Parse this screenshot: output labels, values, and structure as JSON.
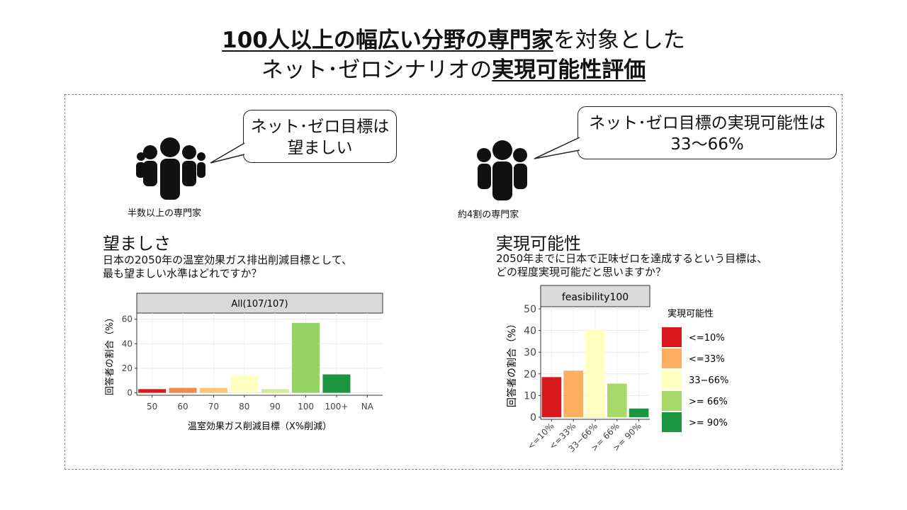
{
  "title": {
    "line1_u": "100人以上の幅広い分野の専門家",
    "line1_rest": "を対象とした",
    "line2_pre": "ネット･ゼロシナリオの",
    "line2_u": "実現可能性評価"
  },
  "left": {
    "bubble_line1": "ネット･ゼロ目標は",
    "bubble_line2": "望ましい",
    "people_caption": "半数以上の専門家",
    "heading": "望ましさ",
    "question_line1": "日本の2050年の温室効果ガス排出削減目標として、",
    "question_line2": "最も望ましい水準はどれですか？"
  },
  "right": {
    "bubble_line1": "ネット･ゼロ目標の実現可能性は",
    "bubble_line2": "33～66%",
    "people_caption": "約4割の専門家",
    "heading": "実現可能性",
    "question_line1": "2050年までに日本で正味ゼロを達成するという目標は、",
    "question_line2": "どの程度実現可能だと思いますか？"
  },
  "icons": {
    "left_group": "people-group-icon",
    "right_group": "people-group-icon"
  },
  "chart_data": [
    {
      "type": "bar",
      "facet_title": "All(107/107)",
      "categories": [
        "50",
        "60",
        "70",
        "80",
        "90",
        "100",
        "100+",
        "NA"
      ],
      "values": [
        3,
        4,
        4,
        14,
        3,
        57,
        15,
        0
      ],
      "colors": [
        "#d7191c",
        "#f08a50",
        "#fdc578",
        "#ffffbf",
        "#d3ec95",
        "#96d264",
        "#1a9641",
        "#ffffff"
      ],
      "xlabel": "温室効果ガス削減目標（X%削減）",
      "ylabel": "回答者の割合（%）",
      "yticks": [
        0,
        20,
        40,
        60
      ],
      "ylim": [
        -2,
        65
      ],
      "grid": true
    },
    {
      "type": "bar",
      "facet_title": "feasibility100",
      "categories": [
        "<=10%",
        "<=33%",
        "33−66%",
        ">= 66%",
        ">= 90%"
      ],
      "values": [
        18.5,
        21.5,
        40.5,
        15.5,
        4
      ],
      "colors": [
        "#d7191c",
        "#fdae61",
        "#ffffbf",
        "#a6d96a",
        "#1a9641"
      ],
      "ylabel": "回答者の割合（%）",
      "yticks": [
        0,
        10,
        20,
        30,
        40,
        50
      ],
      "ylim": [
        -1,
        51
      ],
      "legend_title": "実現可能性",
      "legend_labels": [
        "<=10%",
        "<=33%",
        "33−66%",
        ">= 66%",
        ">= 90%"
      ],
      "legend_position": "right",
      "grid": true
    }
  ]
}
